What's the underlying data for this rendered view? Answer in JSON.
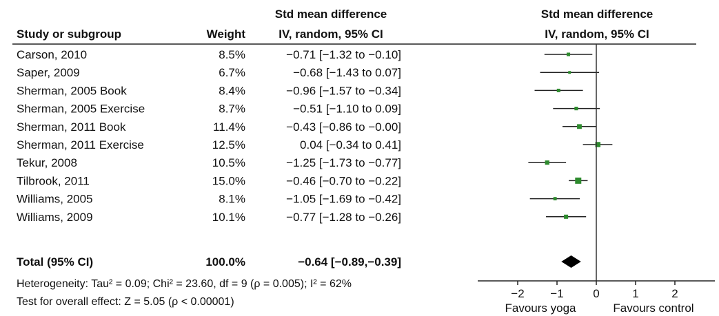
{
  "header": {
    "col_study": "Study or subgroup",
    "col_weight": "Weight",
    "col_smd_line1": "Std mean difference",
    "col_smd_line2": "IV, random, 95% CI",
    "plot_line1": "Std mean difference",
    "plot_line2": "IV, random, 95% CI"
  },
  "total": {
    "label": "Total (95% CI)",
    "weight": "100.0%",
    "ci_text": "−0.64 [−0.89,−0.39]"
  },
  "footer": {
    "heterogeneity": "Heterogeneity: Tau² = 0.09; Chi² = 23.60, df = 9 (ρ = 0.005); I² = 62%",
    "overall": "Test for overall effect: Z = 5.05 (ρ < 0.00001)"
  },
  "axis": {
    "left_label": "Favours yoga",
    "right_label": "Favours control"
  },
  "colors": {
    "point": "#2e8b2e",
    "line": "#222222",
    "diamond": "#000000"
  },
  "chart_data": {
    "type": "forest",
    "xlim": [
      -3,
      3
    ],
    "ticks": [
      -2,
      -1,
      0,
      1,
      2
    ],
    "tick_labels": [
      "−2",
      "−1",
      "0",
      "1",
      "2"
    ],
    "studies": [
      {
        "name": "Carson, 2010",
        "weight": "8.5%",
        "smd": -0.71,
        "lo": -1.32,
        "hi": -0.1,
        "ci_text": "−0.71 [−1.32 to −0.10]"
      },
      {
        "name": "Saper, 2009",
        "weight": "6.7%",
        "smd": -0.68,
        "lo": -1.43,
        "hi": 0.07,
        "ci_text": "−0.68 [−1.43 to  0.07]"
      },
      {
        "name": "Sherman, 2005 Book",
        "weight": "8.4%",
        "smd": -0.96,
        "lo": -1.57,
        "hi": -0.34,
        "ci_text": "−0.96 [−1.57 to −0.34]"
      },
      {
        "name": "Sherman, 2005 Exercise",
        "weight": "8.7%",
        "smd": -0.51,
        "lo": -1.1,
        "hi": 0.09,
        "ci_text": "−0.51 [−1.10 to  0.09]"
      },
      {
        "name": "Sherman, 2011 Book",
        "weight": "11.4%",
        "smd": -0.43,
        "lo": -0.86,
        "hi": -0.0,
        "ci_text": "−0.43 [−0.86 to −0.00]"
      },
      {
        "name": "Sherman, 2011 Exercise",
        "weight": "12.5%",
        "smd": 0.04,
        "lo": -0.34,
        "hi": 0.41,
        "ci_text": "0.04 [−0.34 to  0.41]"
      },
      {
        "name": "Tekur, 2008",
        "weight": "10.5%",
        "smd": -1.25,
        "lo": -1.73,
        "hi": -0.77,
        "ci_text": "−1.25 [−1.73 to −0.77]"
      },
      {
        "name": "Tilbrook, 2011",
        "weight": "15.0%",
        "smd": -0.46,
        "lo": -0.7,
        "hi": -0.22,
        "ci_text": "−0.46 [−0.70 to −0.22]"
      },
      {
        "name": "Williams, 2005",
        "weight": "8.1%",
        "smd": -1.05,
        "lo": -1.69,
        "hi": -0.42,
        "ci_text": "−1.05 [−1.69 to −0.42]"
      },
      {
        "name": "Williams, 2009",
        "weight": "10.1%",
        "smd": -0.77,
        "lo": -1.28,
        "hi": -0.26,
        "ci_text": "−0.77 [−1.28 to −0.26]"
      }
    ],
    "pooled": {
      "smd": -0.64,
      "lo": -0.89,
      "hi": -0.39
    }
  }
}
